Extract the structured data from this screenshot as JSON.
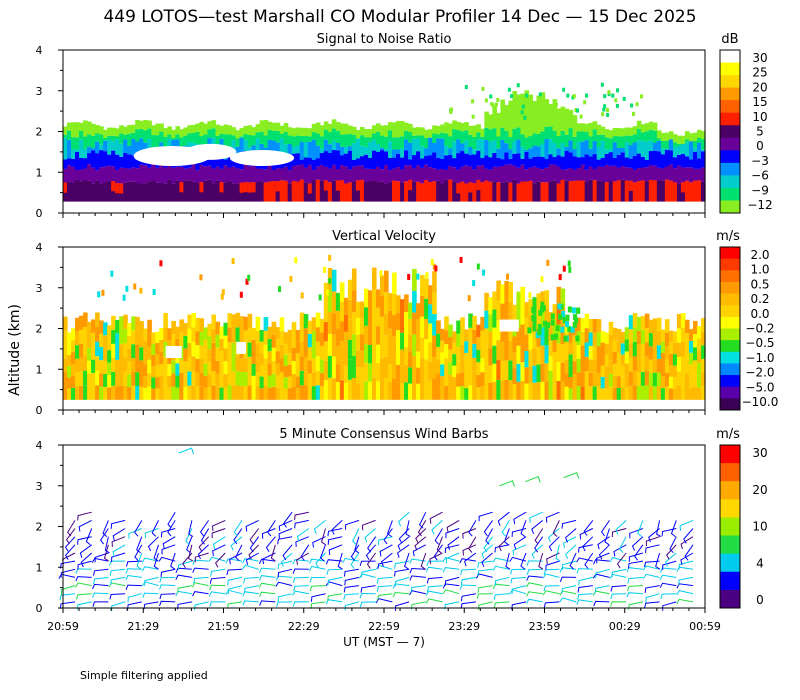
{
  "title": "449 LOTOS—test Marshall CO Modular Profiler 14 Dec — 15 Dec 2025",
  "ylabel": "Altitude (km)",
  "xlabel": "UT  (MST — 7)",
  "x_ticks": [
    "20:59",
    "21:29",
    "21:59",
    "22:29",
    "22:59",
    "23:29",
    "23:59",
    "00:29",
    "00:59"
  ],
  "footnote": "Simple filtering applied",
  "chart_data": [
    {
      "type": "heatmap",
      "title": "Signal to Noise Ratio",
      "unit": "dB",
      "ylim": [
        0,
        4
      ],
      "y_ticks": [
        "0",
        "1",
        "2",
        "3",
        "4"
      ],
      "colorbar_labels": [
        "30",
        "25",
        "20",
        "15",
        "10",
        "5",
        "0",
        "−3",
        "−6",
        "−9",
        "−12"
      ],
      "colorbar_colors": [
        "#ffffff",
        "#ffff00",
        "#ffd700",
        "#ff9900",
        "#ff6000",
        "#ff2000",
        "#4b0066",
        "#6a009a",
        "#0000ff",
        "#0090ff",
        "#00cccc",
        "#00e070",
        "#88ee22"
      ]
    },
    {
      "type": "heatmap",
      "title": "Vertical Velocity",
      "unit": "m/s",
      "ylim": [
        0,
        4
      ],
      "y_ticks": [
        "0",
        "1",
        "2",
        "3",
        "4"
      ],
      "colorbar_labels": [
        "2.0",
        "1.0",
        "0.5",
        "0.2",
        "0.0",
        "−0.2",
        "−0.5",
        "−1.0",
        "−2.0",
        "−5.0",
        "−10.0"
      ],
      "colorbar_colors": [
        "#ff0000",
        "#ff3a00",
        "#ff7000",
        "#ff9a00",
        "#ffbb00",
        "#ffd200",
        "#ffff00",
        "#aaee00",
        "#22dd22",
        "#00e0e0",
        "#0088ff",
        "#0000ff",
        "#5a00aa",
        "#3a0055"
      ]
    },
    {
      "type": "wind_barbs",
      "title": "5 Minute Consensus Wind Barbs",
      "unit": "m/s",
      "ylim": [
        0,
        4
      ],
      "y_ticks": [
        "0",
        "1",
        "2",
        "3",
        "4"
      ],
      "colorbar_labels": [
        "30",
        "20",
        "10",
        "4",
        "0"
      ],
      "colorbar_colors": [
        "#ff0000",
        "#ff6000",
        "#ffaa00",
        "#ffd800",
        "#99ee00",
        "#22dd44",
        "#00ccee",
        "#0000ff",
        "#4b0082"
      ]
    }
  ]
}
